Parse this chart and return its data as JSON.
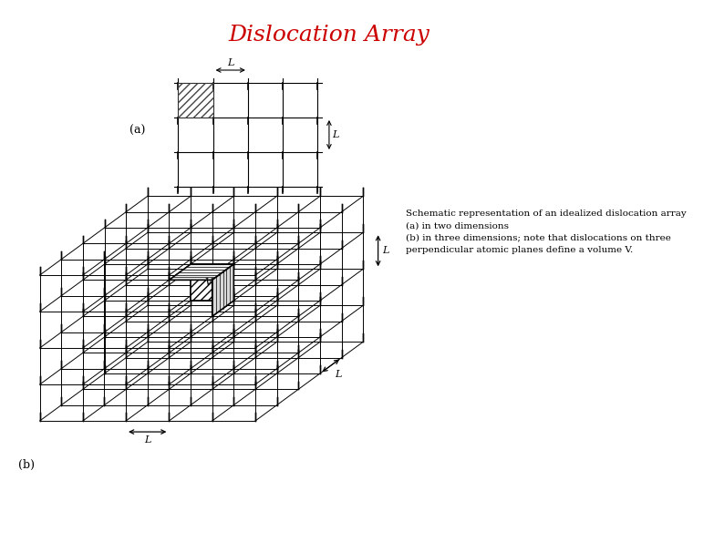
{
  "title": "Dislocation Array",
  "title_color": "#cc0000",
  "title_fontsize": 18,
  "background_color": "#ffffff",
  "caption": "Schematic representation of an idealized dislocation array\n(a) in two dimensions\n(b) in three dimensions; note that dislocations on three\nperpendicular atomic planes define a volume V.",
  "label_a": "(a)",
  "label_b": "(b)",
  "line_color": "#000000"
}
